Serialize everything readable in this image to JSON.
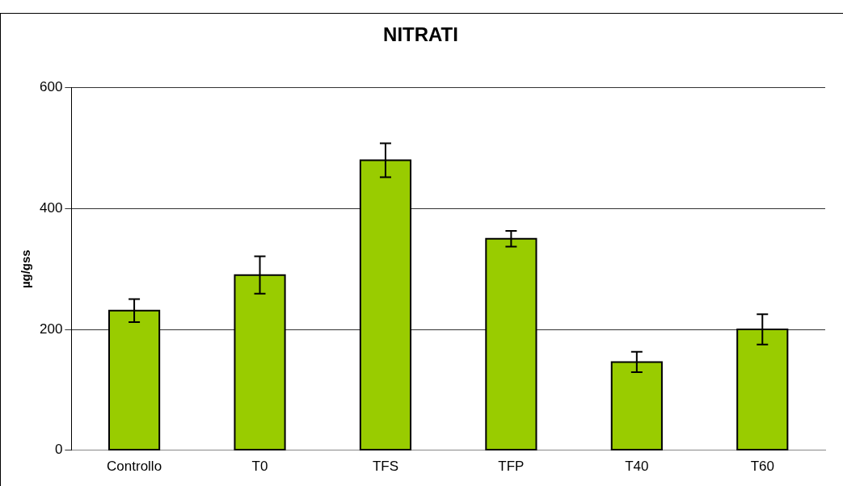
{
  "chart_data": {
    "type": "bar",
    "title": "NITRATI",
    "ylabel": "µg/gss",
    "categories": [
      "Controllo",
      "T0",
      "TFS",
      "TFP",
      "T40",
      "T60"
    ],
    "values": [
      231,
      290,
      480,
      350,
      146,
      200
    ],
    "errors": [
      19,
      31,
      28,
      13,
      17,
      25
    ],
    "color": "#99cc00",
    "ylim": [
      0,
      600
    ],
    "yticks": [
      0,
      200,
      400,
      600
    ],
    "grid": "y",
    "legend": false
  }
}
